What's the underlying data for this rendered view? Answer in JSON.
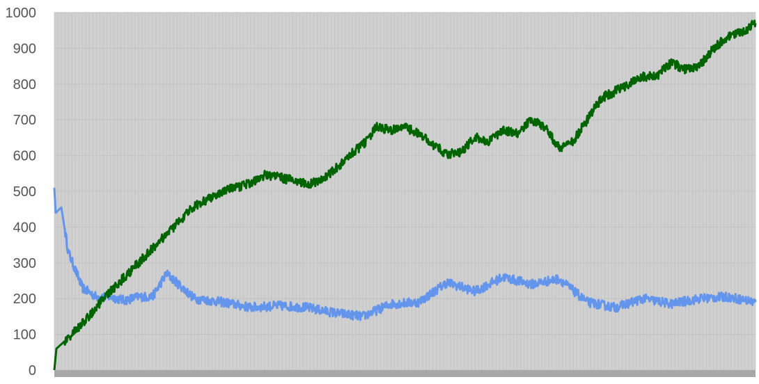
{
  "chart_data": {
    "type": "line",
    "title": "",
    "xlabel": "",
    "ylabel": "",
    "ylim": [
      0,
      1000
    ],
    "y_ticks": [
      "0",
      "100",
      "200",
      "300",
      "400",
      "500",
      "600",
      "700",
      "800",
      "900",
      "1000"
    ],
    "grid": true,
    "legend": "none",
    "colors": {
      "plot_background": "#d0d0d0",
      "gridline": "#bdbdbd",
      "axis_band": "#a8a8a8"
    },
    "series": [
      {
        "color": "#6495ed",
        "x": [
          0,
          0.2,
          1,
          2,
          4,
          6,
          8,
          10,
          12,
          14,
          16,
          20,
          24,
          28,
          32,
          36,
          40,
          44,
          48,
          52,
          56,
          60,
          64,
          68,
          72,
          76,
          80,
          84,
          88,
          92,
          96,
          100
        ],
        "values": [
          510,
          440,
          455,
          330,
          230,
          205,
          205,
          195,
          205,
          205,
          270,
          200,
          190,
          175,
          180,
          175,
          160,
          150,
          185,
          190,
          245,
          220,
          260,
          240,
          255,
          190,
          175,
          200,
          185,
          200,
          205,
          190
        ]
      },
      {
        "color": "#006400",
        "x": [
          0,
          0.3,
          2,
          4,
          6,
          8,
          10,
          12,
          14,
          16,
          18,
          20,
          22,
          24,
          26,
          28,
          30,
          32,
          34,
          36,
          38,
          40,
          42,
          44,
          46,
          48,
          50,
          52,
          54,
          56,
          58,
          60,
          62,
          64,
          66,
          68,
          70,
          72,
          74,
          76,
          78,
          80,
          82,
          84,
          86,
          88,
          90,
          92,
          94,
          96,
          98,
          100
        ],
        "values": [
          0,
          60,
          90,
          130,
          175,
          220,
          260,
          300,
          340,
          380,
          420,
          460,
          480,
          500,
          510,
          525,
          545,
          540,
          530,
          520,
          530,
          560,
          600,
          630,
          680,
          670,
          680,
          660,
          630,
          605,
          610,
          650,
          640,
          670,
          660,
          700,
          680,
          620,
          640,
          700,
          760,
          780,
          800,
          820,
          825,
          860,
          840,
          850,
          900,
          930,
          945,
          970
        ]
      }
    ]
  }
}
